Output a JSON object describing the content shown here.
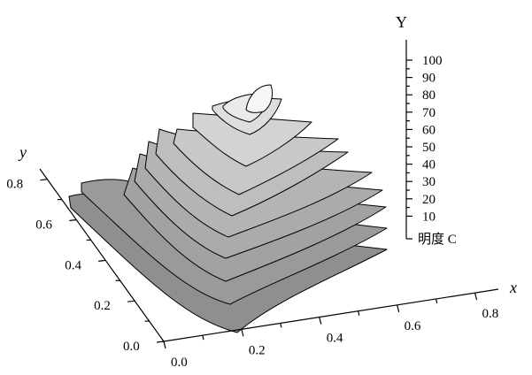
{
  "chart_data": {
    "type": "surface-3d-stacked-contour",
    "x_axis": {
      "label": "x",
      "ticks": [
        "0.0",
        "0.2",
        "0.4",
        "0.6",
        "0.8"
      ]
    },
    "y_axis": {
      "label": "y",
      "ticks": [
        "0.0",
        "0.2",
        "0.4",
        "0.6",
        "0.8"
      ]
    },
    "z_axis": {
      "label": "Y",
      "unit_label": "明度 C",
      "ticks": [
        "100",
        "90",
        "80",
        "70",
        "60",
        "50",
        "40",
        "30",
        "20",
        "10"
      ],
      "range": [
        0,
        100
      ]
    },
    "layers": [
      {
        "level": 0,
        "color": "#8f8f8f"
      },
      {
        "level": 10,
        "color": "#9a9a9a"
      },
      {
        "level": 20,
        "color": "#a2a2a2"
      },
      {
        "level": 30,
        "color": "#ababab"
      },
      {
        "level": 40,
        "color": "#b4b4b4"
      },
      {
        "level": 50,
        "color": "#bebebe"
      },
      {
        "level": 60,
        "color": "#c8c8c8"
      },
      {
        "level": 70,
        "color": "#d3d3d3"
      },
      {
        "level": 80,
        "color": "#dedede"
      },
      {
        "level": 90,
        "color": "#eaeaea"
      },
      {
        "level": 100,
        "color": "#f6f6f6"
      }
    ]
  }
}
